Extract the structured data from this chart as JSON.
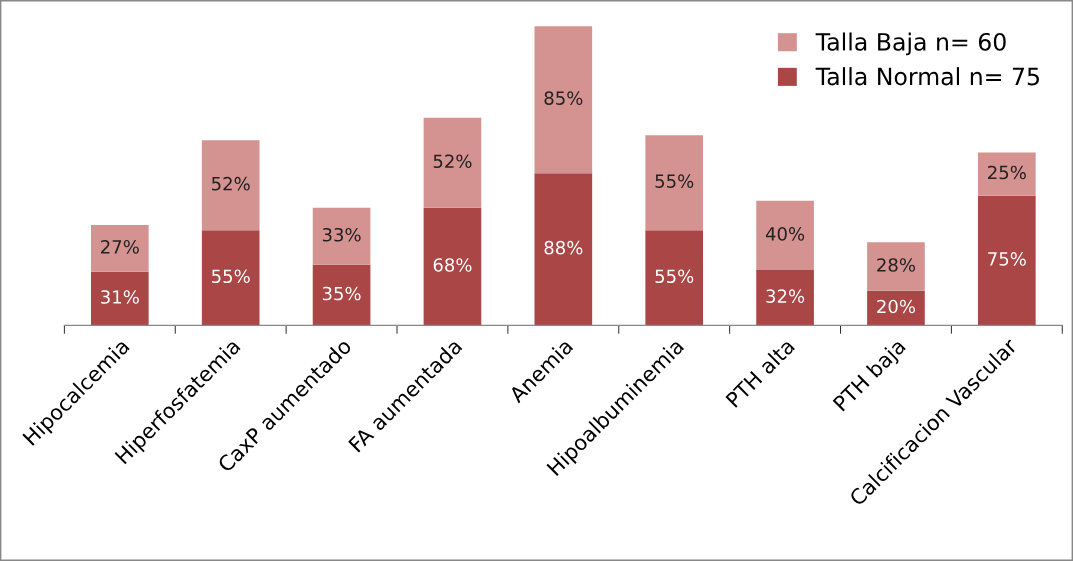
{
  "chart_data": {
    "type": "bar",
    "stacked": true,
    "legend": "top right",
    "grid": false,
    "tick_labels": "x",
    "categories": [
      "Hipocalcemia",
      "Hiperfosfatemia",
      "CaxP aumentado",
      "FA aumentada",
      "Anemia",
      "Hipoalbuminemia",
      "PTH alta",
      "PTH baja",
      "Calcificacion Vascular"
    ],
    "series": [
      {
        "name": "Talla Normal n= 75",
        "color": "#ab4646",
        "values": [
          31,
          55,
          35,
          68,
          88,
          55,
          32,
          20,
          75
        ],
        "value_labels": [
          "31%",
          "55%",
          "35%",
          "68%",
          "88%",
          "55%",
          "32%",
          "20%",
          "75%"
        ]
      },
      {
        "name": "Talla Baja n= 60",
        "color": "#d49391",
        "values": [
          27,
          52,
          33,
          52,
          85,
          55,
          40,
          28,
          25
        ],
        "value_labels": [
          "27%",
          "52%",
          "33%",
          "52%",
          "85%",
          "55%",
          "40%",
          "28%",
          "25%"
        ]
      }
    ]
  }
}
